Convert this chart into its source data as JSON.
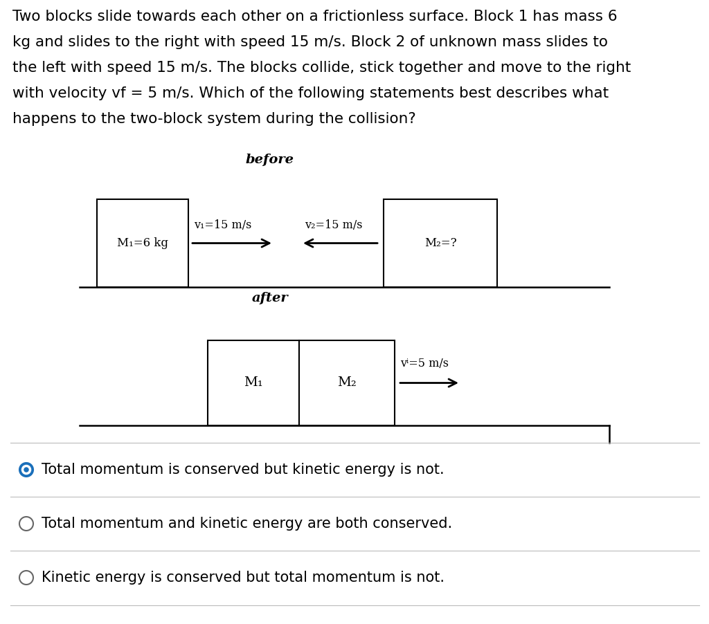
{
  "bg_color": "#ffffff",
  "before_label": "before",
  "after_label": "after",
  "block1_before_label": "M₁=6 kg",
  "block2_before_label": "M₂=?",
  "v1_label": "v₁=15 m/s",
  "v2_label": "v₂=15 m/s",
  "block1_after_label": "M₁",
  "block2_after_label": "M₂",
  "vf_label": "vⁱ=5 m/s",
  "answer1": "Total momentum is conserved but kinetic energy is not.",
  "answer2": "Total momentum and kinetic energy are both conserved.",
  "answer3": "Kinetic energy is conserved but total momentum is not.",
  "title_lines": [
    "Two blocks slide towards each other on a frictionless surface. Block 1 has mass 6",
    "kg and slides to the right with speed 15 m/s. Block 2 of unknown mass slides to",
    "the left with speed 15 m/s. The blocks collide, stick together and move to the right",
    "with velocity vf = 5 m/s. Which of the following statements best describes what",
    "happens to the two-block system during the collision?"
  ],
  "title_line4": "with velocity vᵠ = 5 m/s. Which of the following statements best describes what"
}
